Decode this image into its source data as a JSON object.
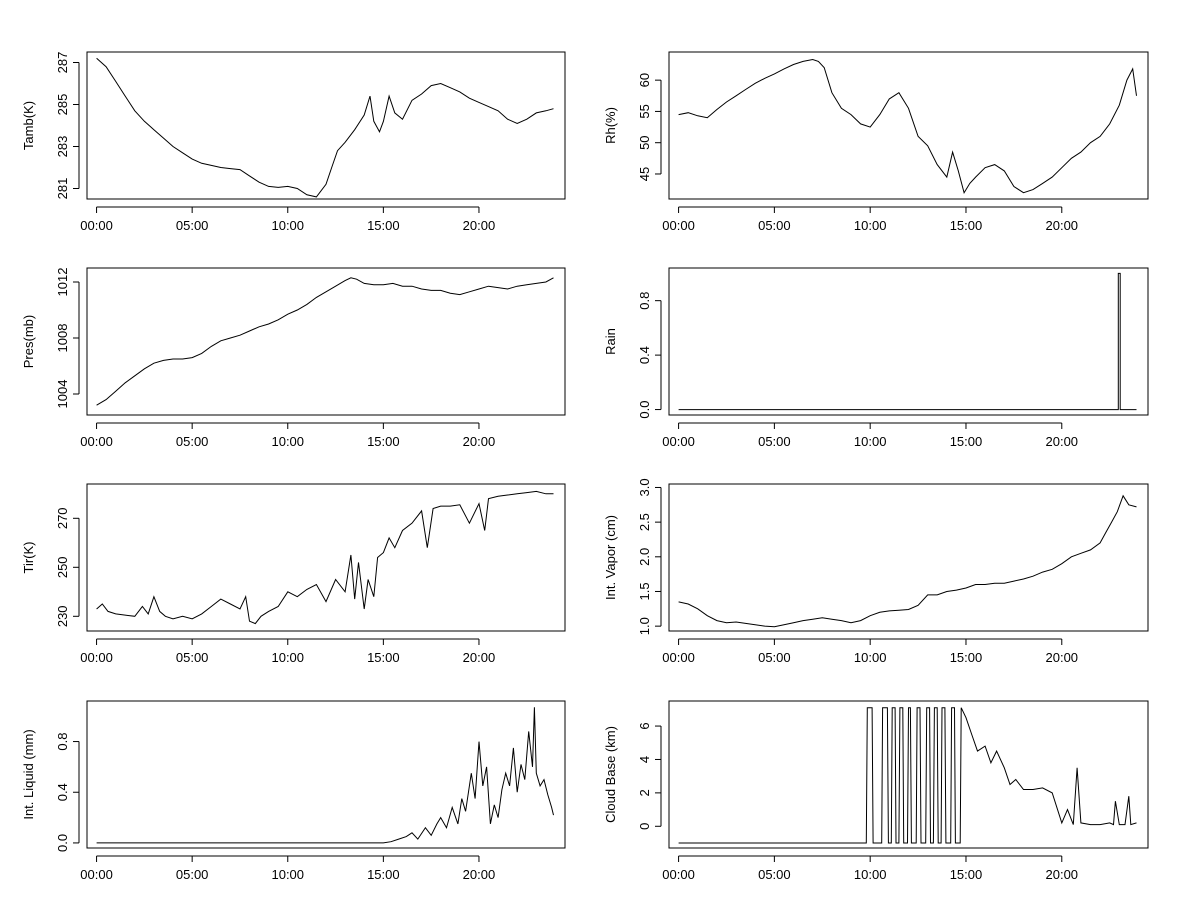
{
  "chart_data": [
    {
      "type": "line",
      "ylabel": "Tamb(K)",
      "xlabel": "",
      "x_ticks": [
        "00:00",
        "05:00",
        "10:00",
        "15:00",
        "20:00"
      ],
      "y_ticks": [
        "281",
        "283",
        "285",
        "287"
      ],
      "xlim_hours": [
        -0.5,
        24.5
      ],
      "ylim": [
        280.5,
        287.5
      ],
      "grid": false,
      "series": [
        {
          "x_hours": [
            0.0,
            0.5,
            1.0,
            1.5,
            2.0,
            2.5,
            3.0,
            3.5,
            4.0,
            4.5,
            5.0,
            5.5,
            6.0,
            6.5,
            7.0,
            7.5,
            8.0,
            8.5,
            9.0,
            9.5,
            10.0,
            10.5,
            11.0,
            11.5,
            12.0,
            12.3,
            12.6,
            13.0,
            13.5,
            14.0,
            14.3,
            14.5,
            14.8,
            15.0,
            15.3,
            15.6,
            16.0,
            16.5,
            17.0,
            17.5,
            18.0,
            18.5,
            19.0,
            19.5,
            20.0,
            20.5,
            21.0,
            21.5,
            22.0,
            22.5,
            23.0,
            23.5,
            23.9
          ],
          "y": [
            287.2,
            286.8,
            286.1,
            285.4,
            284.7,
            284.2,
            283.8,
            283.4,
            283.0,
            282.7,
            282.4,
            282.2,
            282.1,
            282.0,
            281.95,
            281.9,
            281.6,
            281.3,
            281.1,
            281.05,
            281.1,
            281.0,
            280.7,
            280.6,
            281.2,
            282.0,
            282.8,
            283.2,
            283.8,
            284.5,
            285.4,
            284.2,
            283.7,
            284.2,
            285.4,
            284.6,
            284.3,
            285.2,
            285.5,
            285.9,
            286.0,
            285.8,
            285.6,
            285.3,
            285.1,
            284.9,
            284.7,
            284.3,
            284.1,
            284.3,
            284.6,
            284.7,
            284.8
          ]
        }
      ]
    },
    {
      "type": "line",
      "ylabel": "Rh(%)",
      "xlabel": "",
      "x_ticks": [
        "00:00",
        "05:00",
        "10:00",
        "15:00",
        "20:00"
      ],
      "y_ticks": [
        "45",
        "50",
        "55",
        "60"
      ],
      "xlim_hours": [
        -0.5,
        24.5
      ],
      "ylim": [
        41,
        64.5
      ],
      "grid": false,
      "series": [
        {
          "x_hours": [
            0.0,
            0.5,
            1.0,
            1.5,
            2.0,
            2.5,
            3.0,
            3.5,
            4.0,
            4.5,
            5.0,
            5.5,
            6.0,
            6.5,
            7.0,
            7.3,
            7.6,
            8.0,
            8.5,
            9.0,
            9.5,
            10.0,
            10.5,
            11.0,
            11.5,
            12.0,
            12.5,
            13.0,
            13.5,
            14.0,
            14.3,
            14.6,
            14.9,
            15.2,
            15.5,
            16.0,
            16.5,
            17.0,
            17.5,
            18.0,
            18.5,
            19.0,
            19.5,
            20.0,
            20.5,
            21.0,
            21.5,
            22.0,
            22.5,
            23.0,
            23.4,
            23.7,
            23.9
          ],
          "y": [
            54.5,
            54.8,
            54.3,
            54.0,
            55.3,
            56.5,
            57.5,
            58.5,
            59.5,
            60.3,
            61.0,
            61.8,
            62.5,
            63.0,
            63.3,
            63.0,
            62.0,
            58.0,
            55.5,
            54.5,
            53.0,
            52.5,
            54.5,
            57.0,
            58.0,
            55.5,
            51.0,
            49.5,
            46.5,
            44.5,
            48.5,
            45.5,
            42.0,
            43.5,
            44.5,
            46.0,
            46.5,
            45.5,
            43.0,
            42.0,
            42.5,
            43.5,
            44.5,
            46.0,
            47.5,
            48.5,
            50.0,
            51.0,
            53.0,
            56.0,
            60.0,
            61.8,
            57.5
          ]
        }
      ]
    },
    {
      "type": "line",
      "ylabel": "Pres(mb)",
      "xlabel": "",
      "x_ticks": [
        "00:00",
        "05:00",
        "10:00",
        "15:00",
        "20:00"
      ],
      "y_ticks": [
        "1004",
        "1008",
        "1012"
      ],
      "xlim_hours": [
        -0.5,
        24.5
      ],
      "ylim": [
        1002.5,
        1013.0
      ],
      "grid": false,
      "series": [
        {
          "x_hours": [
            0.0,
            0.5,
            1.0,
            1.5,
            2.0,
            2.5,
            3.0,
            3.5,
            4.0,
            4.5,
            5.0,
            5.5,
            6.0,
            6.5,
            7.0,
            7.5,
            8.0,
            8.5,
            9.0,
            9.5,
            10.0,
            10.5,
            11.0,
            11.5,
            12.0,
            12.5,
            13.0,
            13.3,
            13.6,
            14.0,
            14.5,
            15.0,
            15.5,
            16.0,
            16.5,
            17.0,
            17.5,
            18.0,
            18.5,
            19.0,
            19.5,
            20.0,
            20.5,
            21.0,
            21.5,
            22.0,
            22.5,
            23.0,
            23.5,
            23.9
          ],
          "y": [
            1003.2,
            1003.6,
            1004.2,
            1004.8,
            1005.3,
            1005.8,
            1006.2,
            1006.4,
            1006.5,
            1006.5,
            1006.6,
            1006.9,
            1007.4,
            1007.8,
            1008.0,
            1008.2,
            1008.5,
            1008.8,
            1009.0,
            1009.3,
            1009.7,
            1010.0,
            1010.4,
            1010.9,
            1011.3,
            1011.7,
            1012.1,
            1012.3,
            1012.2,
            1011.9,
            1011.8,
            1011.8,
            1011.9,
            1011.7,
            1011.7,
            1011.5,
            1011.4,
            1011.4,
            1011.2,
            1011.1,
            1011.3,
            1011.5,
            1011.7,
            1011.6,
            1011.5,
            1011.7,
            1011.8,
            1011.9,
            1012.0,
            1012.3
          ]
        }
      ]
    },
    {
      "type": "line",
      "ylabel": "Rain",
      "xlabel": "",
      "x_ticks": [
        "00:00",
        "05:00",
        "10:00",
        "15:00",
        "20:00"
      ],
      "y_ticks": [
        "0.0",
        "0.4",
        "0.8"
      ],
      "xlim_hours": [
        -0.5,
        24.5
      ],
      "ylim": [
        -0.04,
        1.04
      ],
      "grid": false,
      "series": [
        {
          "x_hours": [
            0.0,
            22.95,
            22.95,
            23.05,
            23.05,
            23.9
          ],
          "y": [
            0.0,
            0.0,
            1.0,
            1.0,
            0.0,
            0.0
          ]
        }
      ]
    },
    {
      "type": "line",
      "ylabel": "Tir(K)",
      "xlabel": "",
      "x_ticks": [
        "00:00",
        "05:00",
        "10:00",
        "15:00",
        "20:00"
      ],
      "y_ticks": [
        "230",
        "250",
        "270"
      ],
      "xlim_hours": [
        -0.5,
        24.5
      ],
      "ylim": [
        224,
        284
      ],
      "grid": false,
      "series": [
        {
          "x_hours": [
            0.0,
            0.3,
            0.6,
            1.0,
            1.5,
            2.0,
            2.4,
            2.7,
            3.0,
            3.3,
            3.6,
            4.0,
            4.5,
            5.0,
            5.5,
            6.0,
            6.5,
            7.0,
            7.5,
            7.8,
            8.0,
            8.3,
            8.6,
            9.0,
            9.5,
            10.0,
            10.5,
            11.0,
            11.5,
            12.0,
            12.5,
            13.0,
            13.3,
            13.5,
            13.7,
            14.0,
            14.2,
            14.5,
            14.7,
            15.0,
            15.3,
            15.6,
            16.0,
            16.5,
            17.0,
            17.3,
            17.6,
            18.0,
            18.5,
            19.0,
            19.5,
            20.0,
            20.3,
            20.5,
            21.0,
            21.5,
            22.0,
            22.5,
            23.0,
            23.5,
            23.9
          ],
          "y": [
            233.0,
            235.0,
            232.0,
            231.0,
            230.5,
            230.0,
            234.0,
            231.0,
            238.0,
            232.0,
            230.0,
            229.0,
            230.0,
            229.0,
            231.0,
            234.0,
            237.0,
            235.0,
            233.0,
            238.0,
            228.0,
            227.0,
            230.0,
            232.0,
            234.0,
            240.0,
            238.0,
            241.0,
            243.0,
            236.0,
            245.0,
            240.0,
            255.0,
            237.0,
            252.0,
            233.0,
            245.0,
            238.0,
            254.0,
            256.0,
            262.0,
            258.0,
            265.0,
            268.0,
            273.0,
            258.0,
            274.0,
            275.0,
            275.0,
            275.5,
            268.0,
            276.0,
            265.0,
            278.0,
            279.0,
            279.5,
            280.0,
            280.5,
            281.0,
            280.0,
            280.0
          ]
        }
      ]
    },
    {
      "type": "line",
      "ylabel": "Int. Vapor (cm)",
      "xlabel": "",
      "x_ticks": [
        "00:00",
        "05:00",
        "10:00",
        "15:00",
        "20:00"
      ],
      "y_ticks": [
        "1.0",
        "1.5",
        "2.0",
        "2.5",
        "3.0"
      ],
      "xlim_hours": [
        -0.5,
        24.5
      ],
      "ylim": [
        0.93,
        3.05
      ],
      "grid": false,
      "series": [
        {
          "x_hours": [
            0.0,
            0.5,
            1.0,
            1.5,
            2.0,
            2.5,
            3.0,
            3.5,
            4.0,
            4.5,
            5.0,
            5.5,
            6.0,
            6.5,
            7.0,
            7.5,
            8.0,
            8.5,
            9.0,
            9.5,
            10.0,
            10.5,
            11.0,
            11.5,
            12.0,
            12.5,
            13.0,
            13.5,
            14.0,
            14.5,
            15.0,
            15.5,
            16.0,
            16.5,
            17.0,
            17.5,
            18.0,
            18.5,
            19.0,
            19.5,
            20.0,
            20.5,
            21.0,
            21.5,
            22.0,
            22.3,
            22.6,
            22.9,
            23.2,
            23.5,
            23.9
          ],
          "y": [
            1.35,
            1.32,
            1.25,
            1.15,
            1.08,
            1.05,
            1.06,
            1.04,
            1.02,
            1.0,
            0.99,
            1.02,
            1.05,
            1.08,
            1.1,
            1.12,
            1.1,
            1.08,
            1.05,
            1.08,
            1.15,
            1.2,
            1.22,
            1.23,
            1.24,
            1.3,
            1.45,
            1.45,
            1.5,
            1.52,
            1.55,
            1.6,
            1.6,
            1.62,
            1.62,
            1.65,
            1.68,
            1.72,
            1.78,
            1.82,
            1.9,
            2.0,
            2.05,
            2.1,
            2.2,
            2.35,
            2.5,
            2.65,
            2.88,
            2.75,
            2.72
          ]
        }
      ]
    },
    {
      "type": "line",
      "ylabel": "Int. Liquid (mm)",
      "xlabel": "",
      "x_ticks": [
        "00:00",
        "05:00",
        "10:00",
        "15:00",
        "20:00"
      ],
      "y_ticks": [
        "0.0",
        "0.4",
        "0.8"
      ],
      "xlim_hours": [
        -0.5,
        24.5
      ],
      "ylim": [
        -0.04,
        1.12
      ],
      "grid": false,
      "series": [
        {
          "x_hours": [
            0.0,
            15.0,
            15.4,
            15.8,
            16.2,
            16.5,
            16.8,
            17.2,
            17.5,
            17.8,
            18.0,
            18.3,
            18.6,
            18.9,
            19.1,
            19.3,
            19.6,
            19.8,
            20.0,
            20.2,
            20.4,
            20.6,
            20.8,
            21.0,
            21.2,
            21.4,
            21.6,
            21.8,
            22.0,
            22.2,
            22.4,
            22.6,
            22.8,
            22.9,
            23.0,
            23.2,
            23.4,
            23.6,
            23.8,
            23.9
          ],
          "y": [
            0.0,
            0.0,
            0.01,
            0.03,
            0.05,
            0.08,
            0.03,
            0.12,
            0.06,
            0.15,
            0.2,
            0.12,
            0.28,
            0.15,
            0.35,
            0.25,
            0.55,
            0.35,
            0.8,
            0.45,
            0.6,
            0.15,
            0.3,
            0.2,
            0.42,
            0.55,
            0.45,
            0.75,
            0.4,
            0.62,
            0.5,
            0.88,
            0.6,
            1.07,
            0.55,
            0.45,
            0.5,
            0.38,
            0.28,
            0.22
          ]
        }
      ]
    },
    {
      "type": "line",
      "ylabel": "Cloud Base (km)",
      "xlabel": "",
      "x_ticks": [
        "00:00",
        "05:00",
        "10:00",
        "15:00",
        "20:00"
      ],
      "y_ticks": [
        "0",
        "2",
        "4",
        "6"
      ],
      "xlim_hours": [
        -0.5,
        24.5
      ],
      "ylim": [
        -1.3,
        7.5
      ],
      "grid": false,
      "series": [
        {
          "x_hours": [
            0.0,
            9.8,
            9.85,
            10.1,
            10.15,
            10.6,
            10.65,
            10.9,
            10.95,
            11.1,
            11.15,
            11.3,
            11.35,
            11.5,
            11.55,
            11.7,
            11.75,
            11.95,
            12.0,
            12.1,
            12.15,
            12.4,
            12.45,
            12.6,
            12.65,
            12.9,
            12.95,
            13.1,
            13.15,
            13.3,
            13.35,
            13.5,
            13.55,
            13.7,
            13.75,
            13.9,
            13.95,
            14.2,
            14.25,
            14.4,
            14.45,
            14.7,
            14.75,
            15.0,
            15.3,
            15.6,
            16.0,
            16.3,
            16.6,
            17.0,
            17.3,
            17.6,
            18.0,
            18.5,
            19.0,
            19.5,
            20.0,
            20.3,
            20.6,
            20.8,
            21.0,
            21.5,
            22.0,
            22.5,
            22.7,
            22.8,
            23.0,
            23.3,
            23.5,
            23.6,
            23.9
          ],
          "y": [
            -1.0,
            -1.0,
            7.1,
            7.1,
            -1.0,
            -1.0,
            7.1,
            7.1,
            -1.0,
            -1.0,
            7.1,
            7.1,
            -1.0,
            -1.0,
            7.1,
            7.1,
            -1.0,
            -1.0,
            7.1,
            7.1,
            -1.0,
            -1.0,
            7.1,
            7.1,
            -1.0,
            -1.0,
            7.1,
            7.1,
            -1.0,
            -1.0,
            7.1,
            7.1,
            -1.0,
            -1.0,
            7.1,
            7.1,
            -1.0,
            -1.0,
            7.1,
            7.1,
            -1.0,
            -1.0,
            7.1,
            6.5,
            5.5,
            4.5,
            4.8,
            3.8,
            4.5,
            3.5,
            2.5,
            2.8,
            2.2,
            2.2,
            2.3,
            2.0,
            0.2,
            1.0,
            0.1,
            3.5,
            0.2,
            0.1,
            0.1,
            0.2,
            0.1,
            1.5,
            0.1,
            0.1,
            1.8,
            0.1,
            0.2
          ]
        }
      ]
    }
  ]
}
